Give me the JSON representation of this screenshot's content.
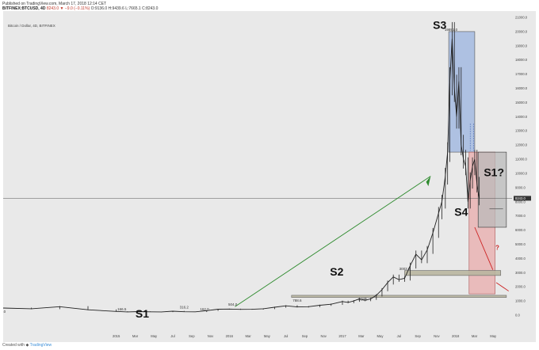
{
  "header": {
    "published": "Published on TradingView.com, March 17, 2018 12:14 CET",
    "symbol": "BITFINEX:BTCUSD, 4D",
    "quote": "8243.0 ▼ −9.0 (−0.11%)",
    "ohlc": "O:9136.0 H:9439.6 L:7665.1 C:8243.0"
  },
  "chart_title": "Bitcoin / Dollar, 4D, BITFINEX",
  "footer": {
    "created_with": "Created with",
    "brand": "TradingView"
  },
  "colors": {
    "background": "#e9e9e9",
    "candles": "#222222",
    "s3_box": "#9fb6e0",
    "s4_box": "#e8a6a6",
    "s1q_box": "#b9b9b9",
    "support_band": "#b9b6a0",
    "trend_arrow": "#2e8b2e",
    "down_arrow": "#cc2222",
    "price_line": "#555555"
  },
  "chart_data": {
    "type": "candlestick",
    "title": "Bitcoin / Dollar, 4D, BITFINEX",
    "y_scale": "linear",
    "ylim": [
      0,
      21000
    ],
    "y_ticks": [
      0,
      1000,
      2000,
      3000,
      4000,
      5000,
      6000,
      7000,
      8000,
      9000,
      10000,
      11000,
      12000,
      13000,
      14000,
      15000,
      16000,
      17000,
      18000,
      19000,
      20000,
      21000
    ],
    "y_tick_labels": [
      "0.0",
      "1000.0",
      "2000.0",
      "3000.0",
      "4000.0",
      "5000.0",
      "6000.0",
      "7000.0",
      "8000.0",
      "9000.0",
      "10000.0",
      "11000.0",
      "12000.0",
      "13000.0",
      "14000.0",
      "15000.0",
      "16000.0",
      "17000.0",
      "18000.0",
      "19000.0",
      "20000.0",
      "21000.0"
    ],
    "x_ticks": [
      {
        "label": "2015",
        "t": 2015.0
      },
      {
        "label": "Mar",
        "t": 2015.167
      },
      {
        "label": "May",
        "t": 2015.333
      },
      {
        "label": "Jul",
        "t": 2015.5
      },
      {
        "label": "Sep",
        "t": 2015.667
      },
      {
        "label": "Nov",
        "t": 2015.833
      },
      {
        "label": "2016",
        "t": 2016.0
      },
      {
        "label": "Mar",
        "t": 2016.167
      },
      {
        "label": "May",
        "t": 2016.333
      },
      {
        "label": "Jul",
        "t": 2016.5
      },
      {
        "label": "Sep",
        "t": 2016.667
      },
      {
        "label": "Nov",
        "t": 2016.833
      },
      {
        "label": "2017",
        "t": 2017.0
      },
      {
        "label": "Mar",
        "t": 2017.167
      },
      {
        "label": "May",
        "t": 2017.333
      },
      {
        "label": "Jul",
        "t": 2017.5
      },
      {
        "label": "Sep",
        "t": 2017.667
      },
      {
        "label": "Nov",
        "t": 2017.833
      },
      {
        "label": "2018",
        "t": 2018.0
      },
      {
        "label": "Mar",
        "t": 2018.167
      },
      {
        "label": "May",
        "t": 2018.333
      }
    ],
    "x_range": [
      2014.0,
      2018.5
    ],
    "series": [
      {
        "values": [
          [
            2014.0,
            500
          ],
          [
            2014.25,
            450
          ],
          [
            2014.5,
            600
          ],
          [
            2014.75,
            380
          ],
          [
            2015.0,
            260
          ],
          [
            2015.1,
            230
          ],
          [
            2015.2,
            250
          ],
          [
            2015.3,
            235
          ],
          [
            2015.4,
            228
          ],
          [
            2015.5,
            280
          ],
          [
            2015.6,
            240
          ],
          [
            2015.7,
            235
          ],
          [
            2015.8,
            320
          ],
          [
            2015.9,
            420
          ],
          [
            2016.0,
            430
          ],
          [
            2016.1,
            410
          ],
          [
            2016.2,
            415
          ],
          [
            2016.3,
            450
          ],
          [
            2016.4,
            560
          ],
          [
            2016.5,
            660
          ],
          [
            2016.6,
            580
          ],
          [
            2016.7,
            600
          ],
          [
            2016.8,
            700
          ],
          [
            2016.9,
            770
          ],
          [
            2017.0,
            960
          ],
          [
            2017.05,
            900
          ],
          [
            2017.1,
            1000
          ],
          [
            2017.15,
            1150
          ],
          [
            2017.2,
            1050
          ],
          [
            2017.25,
            1150
          ],
          [
            2017.3,
            1400
          ],
          [
            2017.35,
            1800
          ],
          [
            2017.4,
            2300
          ],
          [
            2017.45,
            2700
          ],
          [
            2017.5,
            2500
          ],
          [
            2017.55,
            2600
          ],
          [
            2017.6,
            3500
          ],
          [
            2017.65,
            4300
          ],
          [
            2017.7,
            3900
          ],
          [
            2017.75,
            4600
          ],
          [
            2017.8,
            5800
          ],
          [
            2017.85,
            7200
          ],
          [
            2017.88,
            8000
          ],
          [
            2017.91,
            9800
          ],
          [
            2017.93,
            11500
          ],
          [
            2017.95,
            16500
          ],
          [
            2017.97,
            19500
          ],
          [
            2017.99,
            16000
          ],
          [
            2018.01,
            14000
          ],
          [
            2018.03,
            16500
          ],
          [
            2018.05,
            12000
          ],
          [
            2018.07,
            11000
          ],
          [
            2018.09,
            10500
          ],
          [
            2018.11,
            8000
          ],
          [
            2018.13,
            9500
          ],
          [
            2018.15,
            10500
          ],
          [
            2018.17,
            11000
          ],
          [
            2018.19,
            9200
          ],
          [
            2018.21,
            8243
          ]
        ]
      }
    ],
    "price_labels": [
      {
        "text": "5.0",
        "t": 2014.0,
        "v": 5
      },
      {
        "text": "166.5",
        "t": 2015.05,
        "v": 166.5
      },
      {
        "text": "316.2",
        "t": 2015.6,
        "v": 316.2
      },
      {
        "text": "162.0",
        "t": 2015.78,
        "v": 162.0
      },
      {
        "text": "504.0",
        "t": 2016.03,
        "v": 504.0
      },
      {
        "text": "788.6",
        "t": 2016.6,
        "v": 788.6
      },
      {
        "text": "868.2",
        "t": 2017.18,
        "v": 868.2
      },
      {
        "text": "3003.0",
        "t": 2017.55,
        "v": 3003.0
      },
      {
        "text": "19891.0",
        "t": 2017.96,
        "v": 19891.0
      }
    ],
    "annotations": [
      "S1",
      "S2",
      "S3",
      "S4",
      "S1?",
      "?"
    ],
    "current_price": {
      "label": "8243.0",
      "value": 8243.0
    },
    "zones": [
      {
        "name": "S3",
        "t0": 2017.94,
        "t1": 2018.17,
        "v0": 11500,
        "v1": 20000
      },
      {
        "name": "S4",
        "t0": 2018.12,
        "t1": 2018.35,
        "v0": 1500,
        "v1": 11500
      },
      {
        "name": "S1?",
        "t0": 2018.2,
        "t1": 2018.45,
        "v0": 6200,
        "v1": 11500
      },
      {
        "name": "support-3000",
        "t0": 2017.55,
        "t1": 2018.4,
        "v0": 2800,
        "v1": 3150
      },
      {
        "name": "support-1200",
        "t0": 2016.55,
        "t1": 2018.45,
        "v0": 1250,
        "v1": 1400
      }
    ],
    "grid": false
  }
}
